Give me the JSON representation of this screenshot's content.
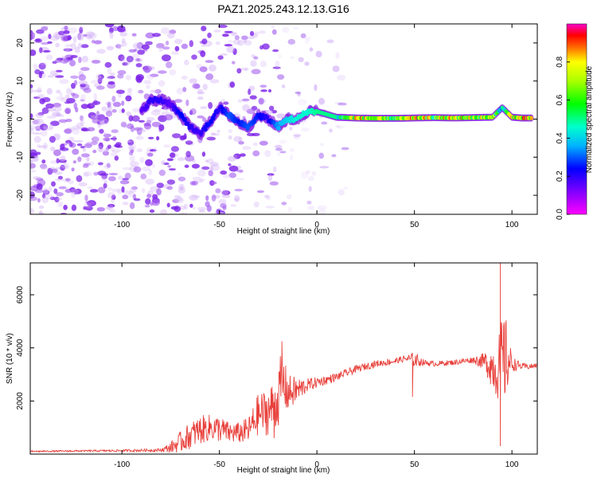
{
  "title": "PAZ1.2025.243.12.13.G16",
  "chart_data": [
    {
      "type": "heatmap",
      "title": "PAZ1.2025.243.12.13.G16",
      "xlabel": "Height of straight line (km)",
      "ylabel": "Frequency (Hz)",
      "xlim": [
        -147,
        113
      ],
      "ylim": [
        -25,
        25
      ],
      "x_ticks": [
        -100,
        -50,
        0,
        50,
        100
      ],
      "y_ticks": [
        -20,
        -10,
        0,
        10,
        20
      ],
      "colorbar": {
        "label": "Normalized spectral amplitude",
        "range": [
          0.0,
          1.0
        ],
        "ticks": [
          0.0,
          0.2,
          0.4,
          0.6,
          0.8
        ],
        "colormap": [
          "#ff00ff",
          "#ff0000",
          "#ffff00",
          "#00ff00",
          "#00ffff",
          "#0000ff",
          "#ff00ff"
        ]
      },
      "ridge": {
        "description_points_x": [
          -90,
          -85,
          -80,
          -75,
          -70,
          -65,
          -60,
          -55,
          -50,
          -45,
          -40,
          -35,
          -30,
          -25,
          -20,
          -15,
          -10,
          -5,
          0,
          10,
          20,
          30,
          40,
          50,
          60,
          70,
          80,
          90,
          95,
          100,
          105,
          110
        ],
        "frequency_hz": [
          2,
          5,
          5,
          4,
          1,
          -2,
          -4,
          -1,
          3,
          1,
          -1,
          -2,
          1,
          0,
          -2,
          0,
          0,
          2,
          2,
          0.5,
          0.3,
          0.2,
          0.2,
          0.3,
          0.4,
          0.3,
          0.4,
          0.5,
          3,
          0.5,
          0.3,
          0.3
        ],
        "amplitude": [
          0.15,
          0.2,
          0.2,
          0.15,
          0.25,
          0.2,
          0.18,
          0.25,
          0.2,
          0.3,
          0.25,
          0.3,
          0.25,
          0.2,
          0.35,
          0.4,
          0.45,
          0.45,
          0.5,
          0.5,
          0.95,
          0.8,
          0.7,
          0.95,
          0.8,
          0.9,
          0.85,
          0.8,
          0.5,
          0.95,
          0.9,
          0.95
        ]
      }
    },
    {
      "type": "line",
      "xlabel": "Height of straight line (km)",
      "ylabel": "SNR (10 * v/v)",
      "xlim": [
        -147,
        113
      ],
      "ylim": [
        0,
        7200
      ],
      "x_ticks": [
        -100,
        -50,
        0,
        50,
        100
      ],
      "y_ticks": [
        2000,
        4000,
        6000
      ],
      "series": [
        {
          "name": "SNR",
          "color": "#e8413c",
          "x": [
            -147,
            -120,
            -100,
            -80,
            -75,
            -70,
            -65,
            -60,
            -55,
            -50,
            -45,
            -40,
            -35,
            -30,
            -25,
            -20,
            -18,
            -15,
            -10,
            -5,
            0,
            10,
            20,
            30,
            40,
            45,
            50,
            55,
            60,
            70,
            80,
            85,
            88,
            90,
            93,
            95,
            97,
            100,
            105,
            110,
            113
          ],
          "y": [
            100,
            120,
            130,
            150,
            250,
            450,
            700,
            900,
            1000,
            950,
            800,
            800,
            900,
            1500,
            1600,
            2000,
            2800,
            2300,
            2400,
            2600,
            2700,
            2900,
            3200,
            3400,
            3500,
            3600,
            3550,
            3450,
            3400,
            3450,
            3550,
            3500,
            3400,
            3300,
            3200,
            3400,
            3600,
            3400,
            3300,
            3300,
            3350
          ],
          "noise_envelope": [
            30,
            30,
            40,
            60,
            200,
            400,
            500,
            550,
            500,
            500,
            400,
            400,
            500,
            800,
            900,
            1000,
            1300,
            700,
            500,
            250,
            200,
            150,
            140,
            130,
            120,
            120,
            300,
            100,
            100,
            100,
            120,
            300,
            600,
            900,
            1200,
            2000,
            1500,
            300,
            120,
            100,
            100
          ],
          "peaks": [
            {
              "x": -18,
              "y": 4250
            },
            {
              "x": -22,
              "y": 600
            },
            {
              "x": 49,
              "y": 2150
            },
            {
              "x": 94,
              "y": 7200
            },
            {
              "x": 94,
              "y": 300
            }
          ]
        }
      ]
    }
  ]
}
